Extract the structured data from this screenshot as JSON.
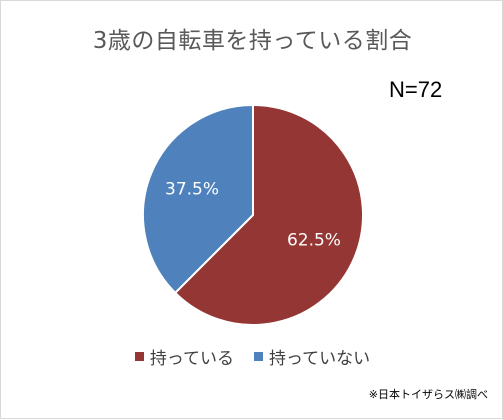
{
  "chart_data": {
    "type": "pie",
    "title": "3歳の自転車を持っている割合",
    "annotation": "N=72",
    "source_note": "※日本トイザらス㈱調べ",
    "slices": [
      {
        "label": "持っている",
        "value": 62.5,
        "data_label": "62.5%",
        "color": "#943634"
      },
      {
        "label": "持っていない",
        "value": 37.5,
        "data_label": "37.5%",
        "color": "#4f81bd"
      }
    ],
    "start_angle_deg": 0,
    "direction": "clockwise",
    "legend_position": "bottom"
  }
}
